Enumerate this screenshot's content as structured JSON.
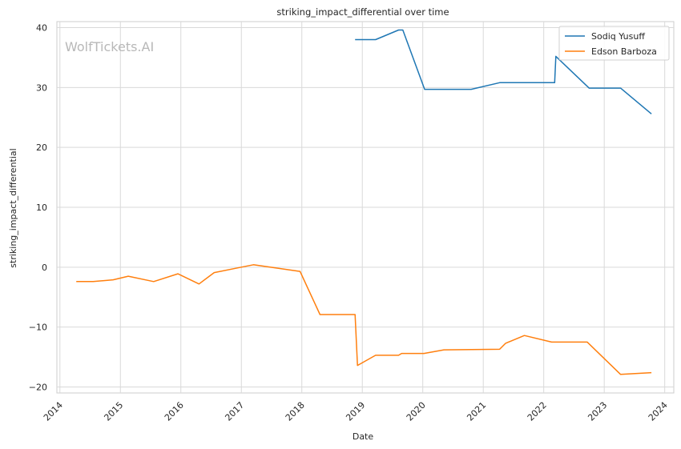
{
  "chart_data": {
    "type": "line",
    "title": "striking_impact_differential over time",
    "xlabel": "Date",
    "ylabel": "striking_impact_differential",
    "watermark": "WolfTickets.AI",
    "xlim": [
      2013.95,
      2024.15
    ],
    "ylim": [
      -21,
      41
    ],
    "x_ticks": [
      2014,
      2015,
      2016,
      2017,
      2018,
      2019,
      2020,
      2021,
      2022,
      2023,
      2024
    ],
    "x_tick_labels": [
      "2014",
      "2015",
      "2016",
      "2017",
      "2018",
      "2019",
      "2020",
      "2021",
      "2022",
      "2023",
      "2024"
    ],
    "y_ticks": [
      -20,
      -10,
      0,
      10,
      20,
      30,
      40
    ],
    "y_tick_labels": [
      "−20",
      "−10",
      "0",
      "10",
      "20",
      "30",
      "40"
    ],
    "grid": true,
    "legend_position": "top-right",
    "series": [
      {
        "name": "Sodiq Yusuff",
        "color": "#1f77b4",
        "points": [
          [
            2018.88,
            38.0
          ],
          [
            2019.22,
            38.0
          ],
          [
            2019.6,
            39.6
          ],
          [
            2019.67,
            39.6
          ],
          [
            2020.03,
            29.7
          ],
          [
            2020.8,
            29.7
          ],
          [
            2021.27,
            30.8
          ],
          [
            2021.8,
            30.8
          ],
          [
            2022.18,
            30.8
          ],
          [
            2022.2,
            35.2
          ],
          [
            2022.75,
            29.9
          ],
          [
            2023.27,
            29.9
          ],
          [
            2023.78,
            25.6
          ]
        ]
      },
      {
        "name": "Edson Barboza",
        "color": "#ff7f0e",
        "points": [
          [
            2014.27,
            -2.4
          ],
          [
            2014.55,
            -2.4
          ],
          [
            2014.88,
            -2.1
          ],
          [
            2015.13,
            -1.5
          ],
          [
            2015.55,
            -2.4
          ],
          [
            2015.95,
            -1.1
          ],
          [
            2016.3,
            -2.8
          ],
          [
            2016.55,
            -0.9
          ],
          [
            2017.0,
            0.0
          ],
          [
            2017.2,
            0.4
          ],
          [
            2017.97,
            -0.7
          ],
          [
            2018.3,
            -7.9
          ],
          [
            2018.88,
            -7.9
          ],
          [
            2018.92,
            -16.4
          ],
          [
            2019.22,
            -14.7
          ],
          [
            2019.6,
            -14.7
          ],
          [
            2019.65,
            -14.4
          ],
          [
            2020.02,
            -14.4
          ],
          [
            2020.35,
            -13.8
          ],
          [
            2021.27,
            -13.7
          ],
          [
            2021.37,
            -12.7
          ],
          [
            2021.68,
            -11.4
          ],
          [
            2022.13,
            -12.5
          ],
          [
            2022.72,
            -12.5
          ],
          [
            2023.27,
            -17.9
          ],
          [
            2023.78,
            -17.6
          ]
        ]
      }
    ]
  }
}
